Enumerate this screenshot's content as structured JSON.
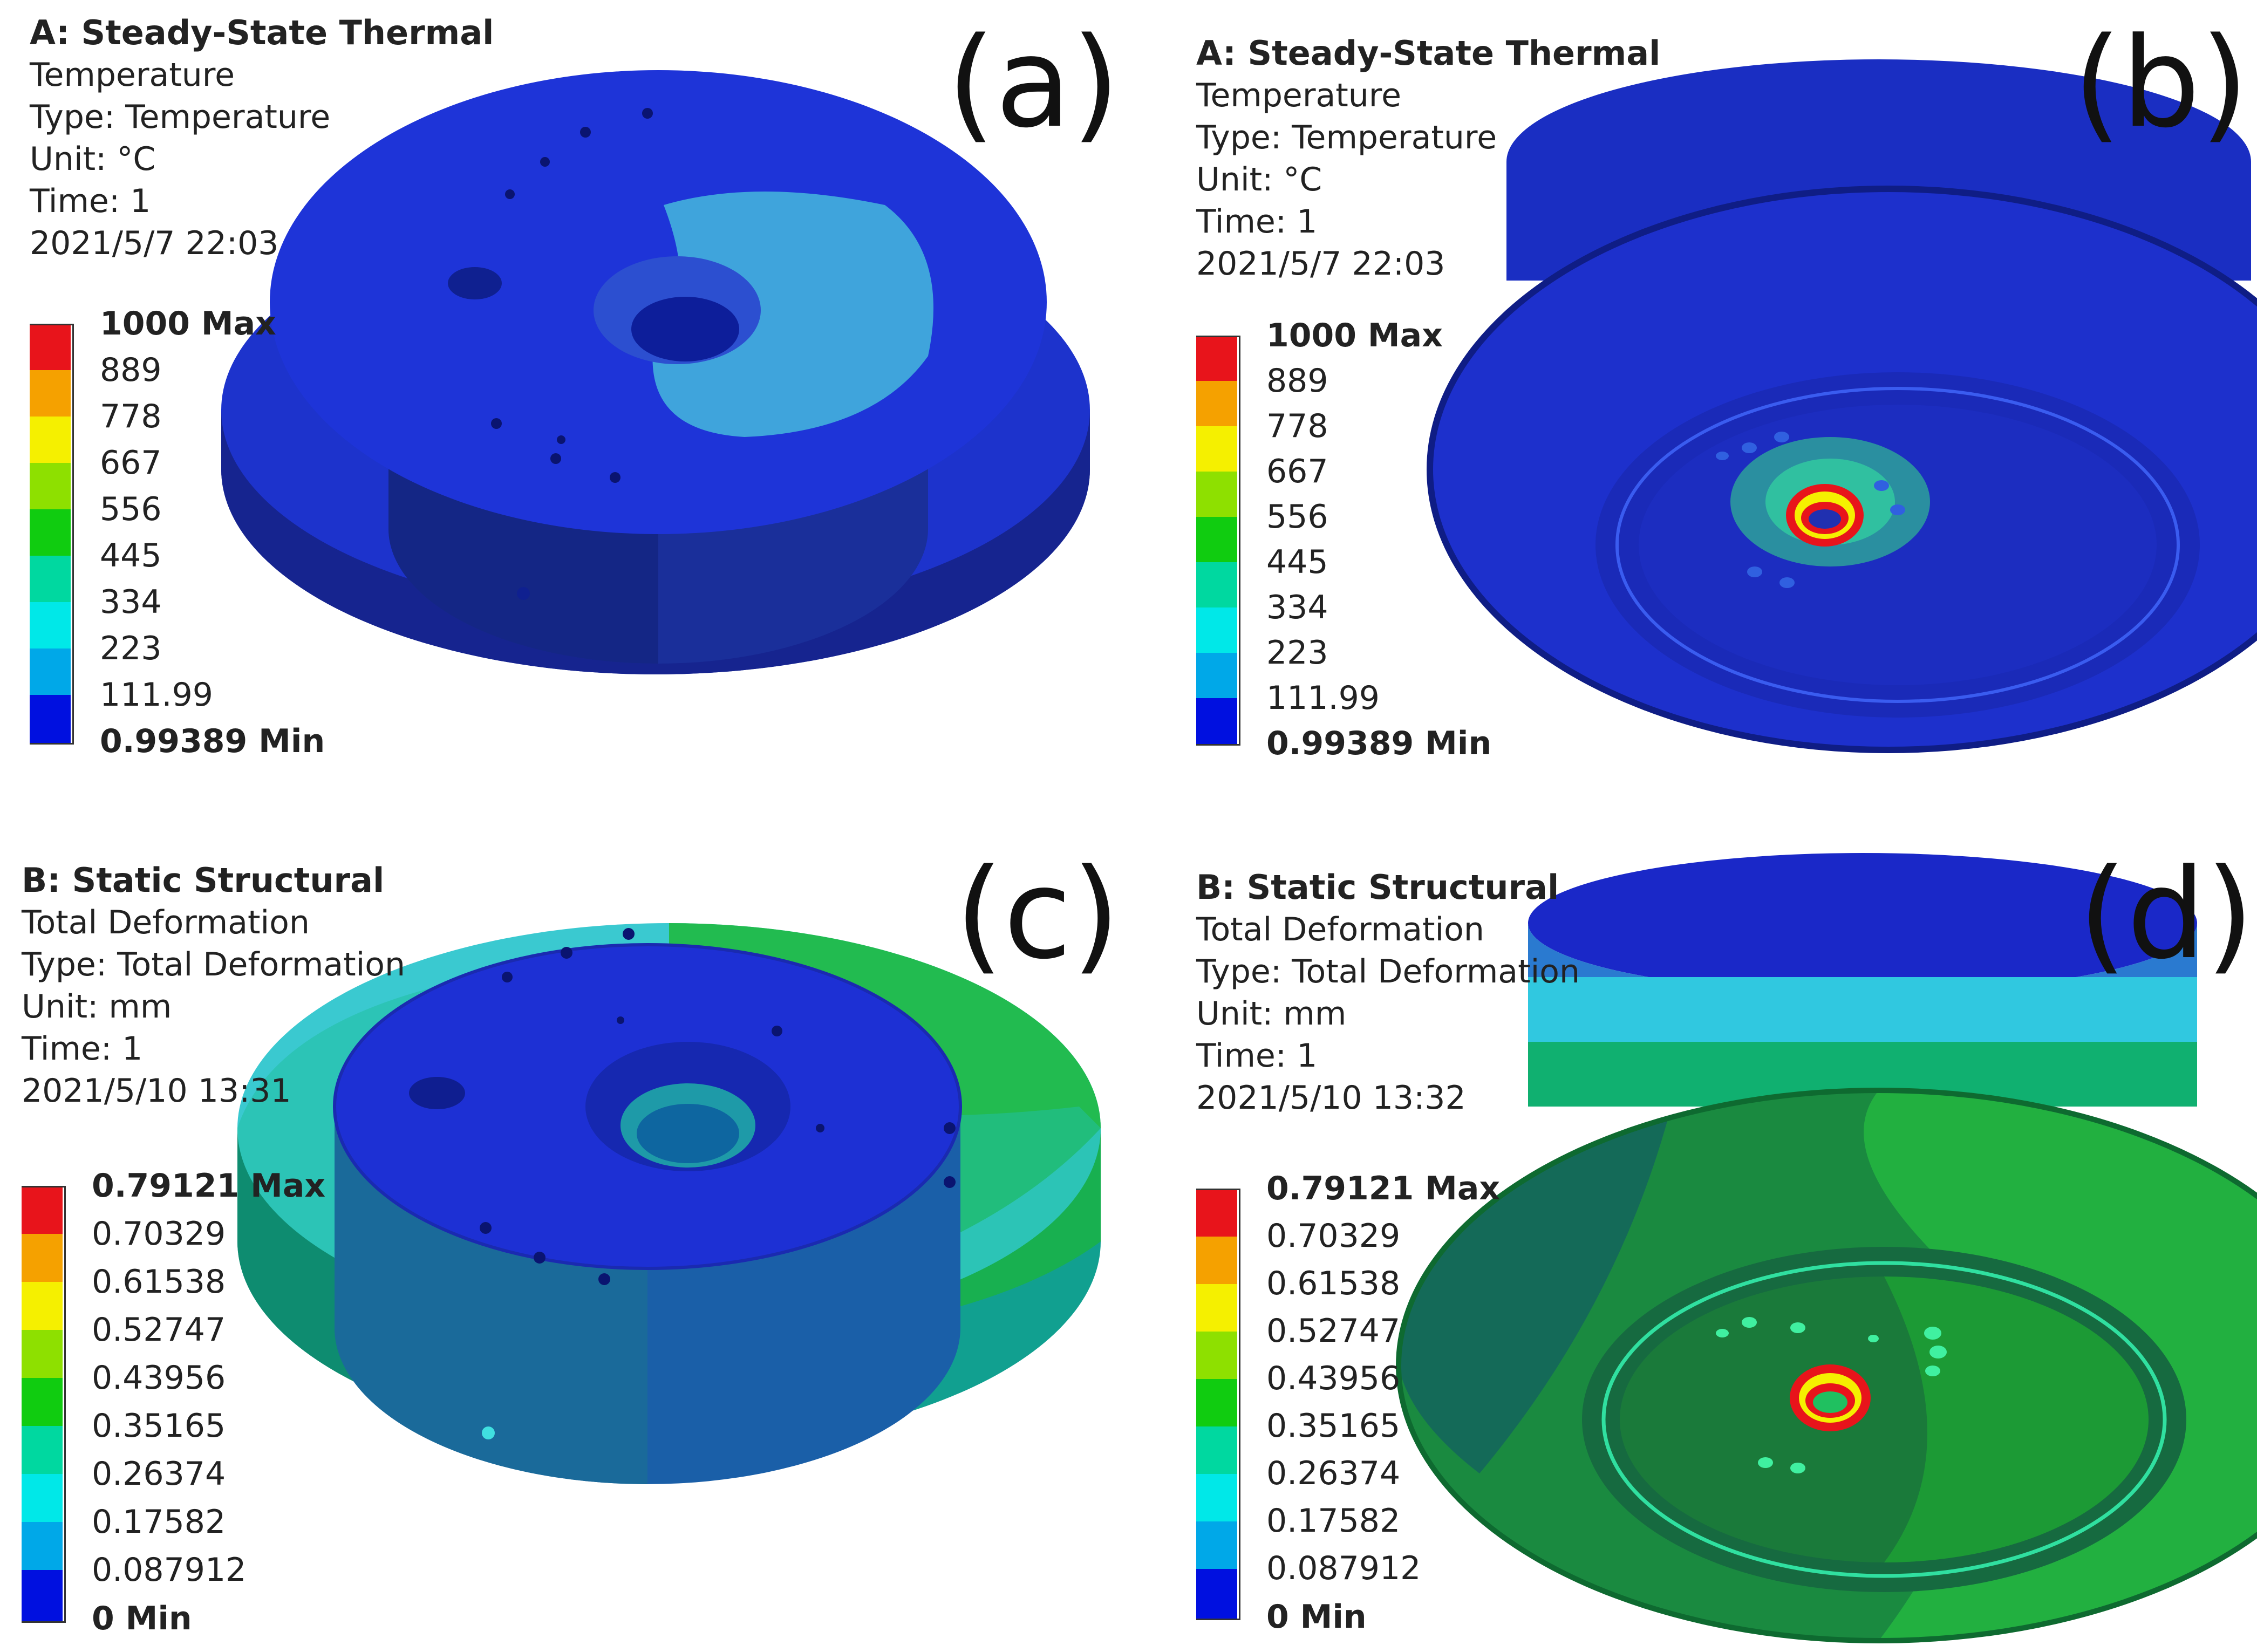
{
  "panels": [
    {
      "tag": "(a)",
      "title": "A: Steady-State Thermal",
      "lines": [
        "Temperature",
        "Type: Temperature",
        "Unit: °C",
        "Time: 1",
        "2021/5/7 22:03"
      ],
      "legend": [
        "1000 Max",
        "889",
        "778",
        "667",
        "556",
        "445",
        "334",
        "223",
        "111.99",
        "0.99389 Min"
      ]
    },
    {
      "tag": "(b)",
      "title": "A: Steady-State Thermal",
      "lines": [
        "Temperature",
        "Type: Temperature",
        "Unit: °C",
        "Time: 1",
        "2021/5/7 22:03"
      ],
      "legend": [
        "1000 Max",
        "889",
        "778",
        "667",
        "556",
        "445",
        "334",
        "223",
        "111.99",
        "0.99389 Min"
      ]
    },
    {
      "tag": "(c)",
      "title": "B: Static Structural",
      "lines": [
        "Total Deformation",
        "Type: Total Deformation",
        "Unit: mm",
        "Time: 1",
        "2021/5/10 13:31"
      ],
      "legend": [
        "0.79121 Max",
        "0.70329",
        "0.61538",
        "0.52747",
        "0.43956",
        "0.35165",
        "0.26374",
        "0.17582",
        "0.087912",
        "0 Min"
      ]
    },
    {
      "tag": "(d)",
      "title": "B: Static Structural",
      "lines": [
        "Total Deformation",
        "Type: Total Deformation",
        "Unit: mm",
        "Time: 1",
        "2021/5/10 13:32"
      ],
      "legend": [
        "0.79121 Max",
        "0.70329",
        "0.61538",
        "0.52747",
        "0.43956",
        "0.35165",
        "0.26374",
        "0.17582",
        "0.087912",
        "0 Min"
      ]
    }
  ],
  "colorscale": [
    "#e8141b",
    "#f5a100",
    "#f5f000",
    "#8ee000",
    "#10cc10",
    "#00d8a0",
    "#00e8e8",
    "#00a8e8",
    "#0010e0"
  ]
}
